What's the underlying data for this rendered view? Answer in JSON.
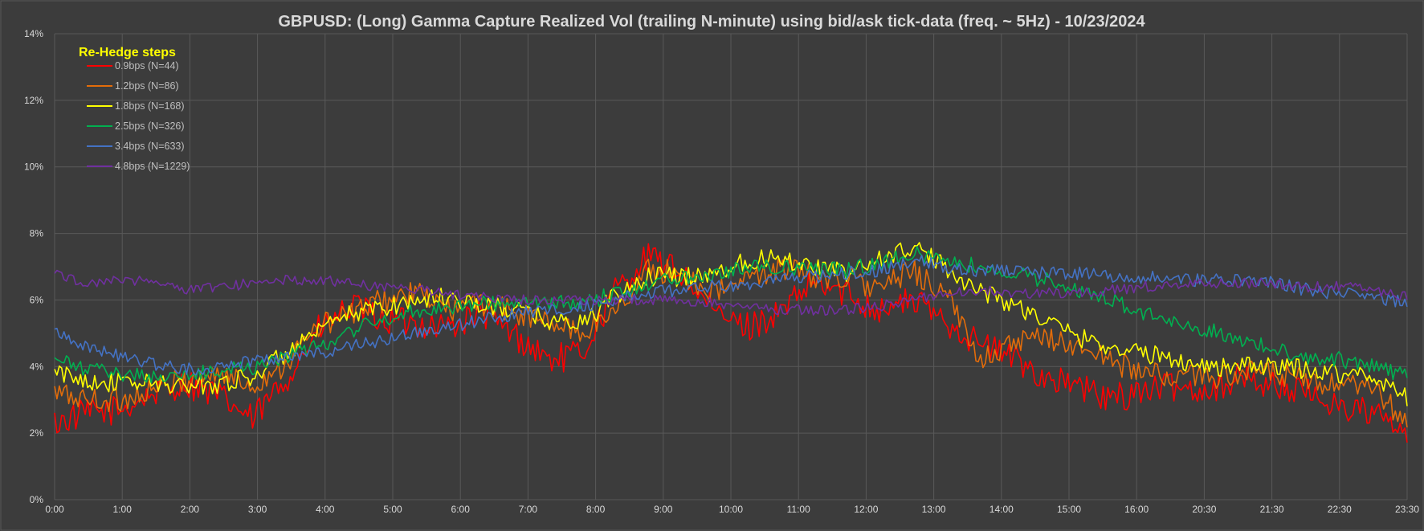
{
  "chart_data": {
    "type": "line",
    "title": "GBPUSD: (Long) Gamma Capture Realized Vol (trailing N-minute) using bid/ask tick-data (freq. ~ 5Hz) - 10/23/2024",
    "xlabel": "",
    "ylabel": "",
    "ylim": [
      0,
      14
    ],
    "y_ticks": [
      "0%",
      "2%",
      "4%",
      "6%",
      "8%",
      "10%",
      "12%",
      "14%"
    ],
    "x_ticks": [
      "0:00",
      "1:00",
      "2:00",
      "3:00",
      "4:00",
      "5:00",
      "6:00",
      "7:00",
      "8:00",
      "9:00",
      "10:00",
      "11:00",
      "12:00",
      "13:00",
      "14:00",
      "15:00",
      "16:00",
      "20:30",
      "21:30",
      "22:30",
      "23:30"
    ],
    "grid": true,
    "legend_title": "Re-Hedge steps",
    "legend_position": "top-left",
    "series": [
      {
        "name": "0.9bps  (N=44)",
        "color": "#ff0000",
        "values": [
          2.3,
          2.6,
          2.7,
          3.2,
          3.5,
          3.1,
          2.4,
          3.6,
          5.1,
          5.8,
          5.4,
          5.3,
          5.2,
          5.6,
          4.9,
          4.2,
          4.4,
          6.3,
          7.3,
          6.8,
          5.6,
          5.2,
          5.6,
          6.5,
          6.2,
          5.7,
          6.0,
          5.4,
          4.7,
          4.3,
          3.7,
          3.4,
          3.0,
          3.3,
          3.4,
          3.3,
          3.7,
          3.4,
          3.2,
          2.8,
          2.6,
          1.9
        ]
      },
      {
        "name": "1.2bps  (N=86)",
        "color": "#e36c0a",
        "values": [
          3.2,
          3.0,
          3.0,
          3.3,
          3.6,
          3.8,
          3.4,
          4.1,
          5.2,
          5.6,
          6.0,
          6.2,
          5.7,
          5.9,
          5.6,
          5.3,
          5.0,
          5.7,
          6.9,
          6.8,
          6.2,
          6.6,
          7.0,
          6.7,
          6.7,
          6.3,
          6.9,
          6.2,
          4.3,
          4.6,
          4.9,
          4.6,
          4.2,
          3.8,
          3.7,
          3.7,
          3.8,
          3.8,
          3.5,
          3.4,
          3.3,
          2.3
        ]
      },
      {
        "name": "1.8bps  (N=168)",
        "color": "#ffff00",
        "values": [
          3.8,
          3.6,
          3.5,
          3.5,
          3.4,
          3.5,
          3.7,
          4.4,
          5.0,
          5.6,
          5.8,
          6.0,
          6.1,
          5.8,
          5.7,
          5.4,
          5.3,
          6.1,
          6.7,
          6.7,
          6.8,
          7.2,
          7.3,
          7.0,
          6.8,
          7.2,
          7.6,
          7.0,
          6.3,
          5.9,
          5.4,
          4.9,
          4.6,
          4.4,
          4.2,
          4.0,
          4.0,
          4.0,
          3.9,
          3.8,
          3.7,
          3.1
        ]
      },
      {
        "name": "2.5bps  (N=326)",
        "color": "#00b050",
        "values": [
          4.2,
          3.9,
          3.8,
          3.7,
          3.7,
          3.9,
          4.0,
          4.3,
          4.6,
          5.1,
          5.4,
          5.7,
          5.8,
          5.9,
          5.9,
          5.9,
          5.9,
          6.2,
          6.5,
          6.7,
          6.8,
          7.0,
          7.0,
          6.9,
          6.9,
          7.1,
          7.4,
          7.2,
          7.0,
          6.8,
          6.6,
          6.3,
          6.0,
          5.6,
          5.3,
          5.1,
          4.8,
          4.5,
          4.3,
          4.2,
          4.0,
          3.7
        ]
      },
      {
        "name": "3.4bps  (N=633)",
        "color": "#4472c4",
        "values": [
          5.1,
          4.6,
          4.3,
          4.1,
          3.9,
          4.0,
          4.2,
          4.3,
          4.4,
          4.6,
          4.8,
          5.0,
          5.2,
          5.4,
          5.6,
          5.7,
          5.8,
          6.0,
          6.2,
          6.3,
          6.4,
          6.5,
          6.6,
          6.7,
          6.8,
          6.9,
          7.2,
          7.0,
          6.9,
          6.9,
          6.8,
          6.8,
          6.7,
          6.7,
          6.6,
          6.6,
          6.6,
          6.5,
          6.3,
          6.2,
          6.1,
          5.9
        ]
      },
      {
        "name": "4.8bps  (N=1229)",
        "color": "#7030a0",
        "values": [
          6.8,
          6.5,
          6.6,
          6.6,
          6.3,
          6.4,
          6.5,
          6.6,
          6.6,
          6.5,
          6.4,
          6.3,
          6.2,
          6.1,
          6.0,
          6.0,
          6.0,
          6.0,
          6.0,
          6.0,
          5.9,
          5.8,
          5.7,
          5.7,
          5.7,
          5.8,
          6.0,
          6.2,
          6.3,
          6.2,
          6.2,
          6.2,
          6.3,
          6.4,
          6.4,
          6.5,
          6.5,
          6.5,
          6.4,
          6.4,
          6.3,
          6.1
        ]
      }
    ]
  }
}
